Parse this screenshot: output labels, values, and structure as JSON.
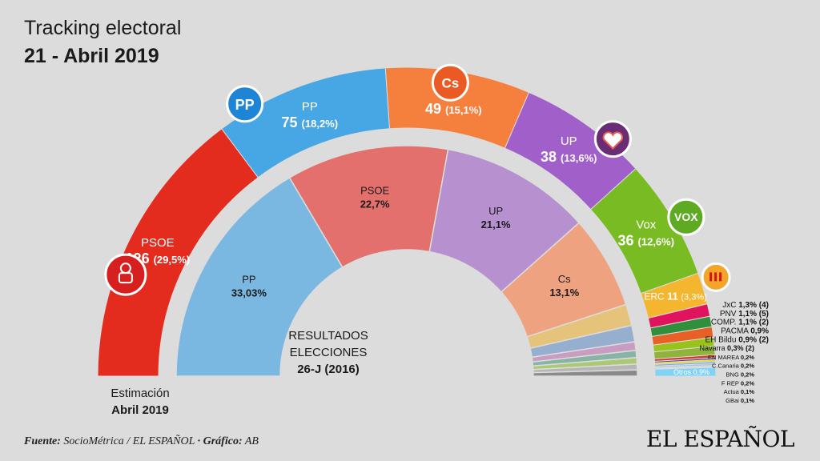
{
  "title": "Tracking electoral",
  "subtitle": "21 - Abril 2019",
  "footer": {
    "source_label": "Fuente:",
    "source_text": "SocioMétrica / EL ESPAÑOL",
    "graphic_label": "· Gráfico:",
    "graphic_text": "AB",
    "brand": "EL ESPAÑOL"
  },
  "chart_data": [
    {
      "type": "semicircle",
      "label_lines": [
        "Estimación",
        "Abril 2019"
      ],
      "series": [
        {
          "name": "PSOE",
          "seats": 126,
          "value_text": "(29,5%)",
          "share": 29.5,
          "color": "#e32b1e"
        },
        {
          "name": "PP",
          "seats": 75,
          "value_text": "(18,2%)",
          "share": 18.2,
          "color": "#47a6e4"
        },
        {
          "name": "Cs",
          "seats": 49,
          "value_text": "(15,1%)",
          "share": 15.1,
          "color": "#f5803e"
        },
        {
          "name": "UP",
          "seats": 38,
          "value_text": "(13,6%)",
          "share": 13.6,
          "color": "#a15fc9"
        },
        {
          "name": "Vox",
          "seats": 36,
          "value_text": "(12,6%)",
          "share": 12.6,
          "color": "#78bb22"
        },
        {
          "name": "ERC",
          "seats": 11,
          "value_text": "(3,3%)",
          "share": 3.3,
          "color": "#f5b62f"
        },
        {
          "name": "JxC",
          "value_text": "1,3% (4)",
          "share": 1.3,
          "color": "#e0135f"
        },
        {
          "name": "PNV",
          "value_text": "1,1% (5)",
          "share": 1.1,
          "color": "#2f8f3b"
        },
        {
          "name": "COMP.",
          "value_text": "1,1% (2)",
          "share": 1.1,
          "color": "#e76026"
        },
        {
          "name": "PACMA",
          "value_text": "0,9%",
          "share": 0.9,
          "color": "#99c21b"
        },
        {
          "name": "EH Bildu",
          "value_text": "0,9% (2)",
          "share": 0.9,
          "color": "#8fb33c"
        },
        {
          "name": "Navarra",
          "value_text": "0,3% (2)",
          "share": 0.3,
          "color": "#d23a2e"
        },
        {
          "name": "EN MAREA",
          "value_text": "0,2%",
          "share": 0.2,
          "color": "#5c3a8c"
        },
        {
          "name": "C.Canaria",
          "value_text": "0,2%",
          "share": 0.2,
          "color": "#f3d400"
        },
        {
          "name": "BNG",
          "value_text": "0,2%",
          "share": 0.2,
          "color": "#6ab0de"
        },
        {
          "name": "F REP",
          "value_text": "0,2%",
          "share": 0.2,
          "color": "#a3c3e0"
        },
        {
          "name": "Actua",
          "value_text": "0,1%",
          "share": 0.1,
          "color": "#cfa0c8"
        },
        {
          "name": "GBai",
          "value_text": "0,1%",
          "share": 0.1,
          "color": "#b9b9b9"
        },
        {
          "name": "Otros",
          "value_text": "0,9%",
          "share": 0.9,
          "color": "#7fd3f7"
        }
      ],
      "icons": {
        "PSOE": "rose-fist-icon",
        "PP": "pp-logo-icon",
        "Cs": "cs-logo-icon",
        "UP": "heart-logo-icon",
        "Vox": "vox-logo-icon",
        "ERC": "erc-logo-icon"
      },
      "icon_text": {
        "PP": "PP",
        "Cs": "Cs",
        "Vox": "VOX"
      }
    },
    {
      "type": "semicircle",
      "label_lines": [
        "RESULTADOS",
        "ELECCIONES",
        "26-J (2016)"
      ],
      "series": [
        {
          "name": "PP",
          "value_text": "33,03%",
          "share": 33.03,
          "color": "#7ab8e2"
        },
        {
          "name": "PSOE",
          "value_text": "22,7%",
          "share": 22.7,
          "color": "#e3706c"
        },
        {
          "name": "UP",
          "value_text": "21,1%",
          "share": 21.1,
          "color": "#b791cf"
        },
        {
          "name": "Cs",
          "value_text": "13,1%",
          "share": 13.1,
          "color": "#eea27f"
        },
        {
          "share": 3.0,
          "color": "#e6c37a"
        },
        {
          "share": 2.3,
          "color": "#97afcf"
        },
        {
          "share": 1.2,
          "color": "#c99cc2"
        },
        {
          "share": 1.0,
          "color": "#87b4a5"
        },
        {
          "share": 0.9,
          "color": "#abc875"
        },
        {
          "share": 0.8,
          "color": "#b6b6b6"
        },
        {
          "share": 0.87,
          "color": "#8a8a8a"
        }
      ]
    }
  ]
}
